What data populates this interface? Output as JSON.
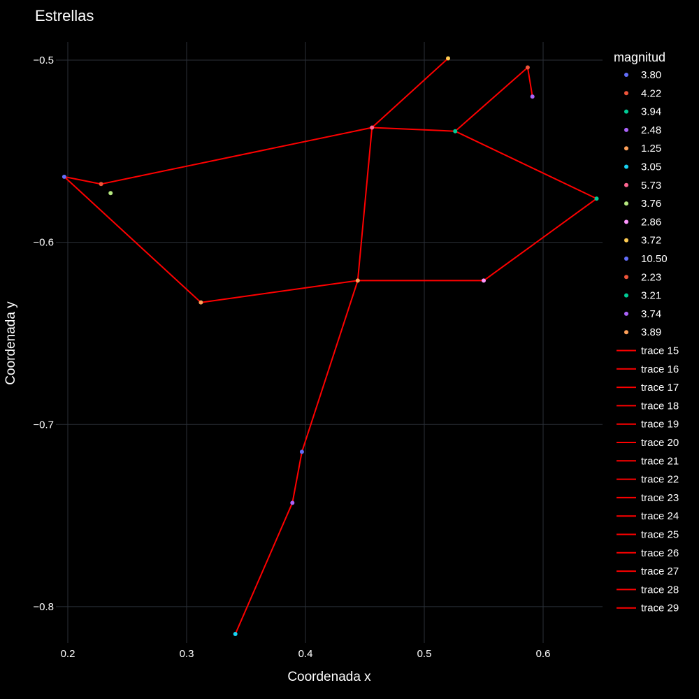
{
  "chart_data": {
    "type": "scatter",
    "title": "Estrellas",
    "xlabel": "Coordenada x",
    "ylabel": "Coordenada y",
    "xlim": [
      0.19,
      0.65
    ],
    "ylim": [
      -0.82,
      -0.49
    ],
    "x_ticks": [
      0.2,
      0.3,
      0.4,
      0.5,
      0.6
    ],
    "x_tick_labels": [
      "0.2",
      "0.3",
      "0.4",
      "0.5",
      "0.6"
    ],
    "y_ticks": [
      -0.5,
      -0.6,
      -0.7,
      -0.8
    ],
    "y_tick_labels": [
      "−0.5",
      "−0.6",
      "−0.7",
      "−0.8"
    ],
    "grid": true,
    "background": "#000000",
    "grid_color": "#2b3038",
    "line_color": "#ff0000",
    "legend_title": "magnitud",
    "legend_position": "right",
    "points": [
      {
        "name": "3.80",
        "x": 0.197,
        "y": -0.564,
        "color": "#636efa"
      },
      {
        "name": "4.22",
        "x": 0.228,
        "y": -0.568,
        "color": "#ef553b"
      },
      {
        "name": "3.94",
        "x": 0.645,
        "y": -0.576,
        "color": "#00cc96"
      },
      {
        "name": "2.48",
        "x": 0.591,
        "y": -0.52,
        "color": "#ab63fa"
      },
      {
        "name": "1.25",
        "x": 0.312,
        "y": -0.633,
        "color": "#ffa15a"
      },
      {
        "name": "3.05",
        "x": 0.341,
        "y": -0.815,
        "color": "#19d3f3"
      },
      {
        "name": "5.73",
        "x": 0.456,
        "y": -0.537,
        "color": "#ff6692"
      },
      {
        "name": "3.76",
        "x": 0.236,
        "y": -0.573,
        "color": "#b6e880"
      },
      {
        "name": "2.86",
        "x": 0.55,
        "y": -0.621,
        "color": "#ff97ff"
      },
      {
        "name": "3.72",
        "x": 0.52,
        "y": -0.499,
        "color": "#fecb52"
      },
      {
        "name": "10.50",
        "x": 0.397,
        "y": -0.715,
        "color": "#636efa"
      },
      {
        "name": "2.23",
        "x": 0.587,
        "y": -0.504,
        "color": "#ef553b"
      },
      {
        "name": "3.21",
        "x": 0.526,
        "y": -0.539,
        "color": "#00cc96"
      },
      {
        "name": "3.74",
        "x": 0.389,
        "y": -0.743,
        "color": "#ab63fa"
      },
      {
        "name": "3.89",
        "x": 0.444,
        "y": -0.621,
        "color": "#ffa15a"
      }
    ],
    "lines": [
      {
        "name": "trace 15",
        "x": [
          0.197,
          0.228
        ],
        "y": [
          -0.564,
          -0.568
        ]
      },
      {
        "name": "trace 16",
        "x": [
          0.228,
          0.456
        ],
        "y": [
          -0.568,
          -0.537
        ]
      },
      {
        "name": "trace 17",
        "x": [
          0.456,
          0.52
        ],
        "y": [
          -0.537,
          -0.499
        ]
      },
      {
        "name": "trace 18",
        "x": [
          0.456,
          0.526
        ],
        "y": [
          -0.537,
          -0.539
        ]
      },
      {
        "name": "trace 19",
        "x": [
          0.526,
          0.587
        ],
        "y": [
          -0.539,
          -0.504
        ]
      },
      {
        "name": "trace 20",
        "x": [
          0.587,
          0.591
        ],
        "y": [
          -0.504,
          -0.52
        ]
      },
      {
        "name": "trace 21",
        "x": [
          0.526,
          0.645
        ],
        "y": [
          -0.539,
          -0.576
        ]
      },
      {
        "name": "trace 22",
        "x": [
          0.645,
          0.55
        ],
        "y": [
          -0.576,
          -0.621
        ]
      },
      {
        "name": "trace 23",
        "x": [
          0.55,
          0.444
        ],
        "y": [
          -0.621,
          -0.621
        ]
      },
      {
        "name": "trace 24",
        "x": [
          0.444,
          0.456
        ],
        "y": [
          -0.621,
          -0.537
        ]
      },
      {
        "name": "trace 25",
        "x": [
          0.197,
          0.312
        ],
        "y": [
          -0.564,
          -0.633
        ]
      },
      {
        "name": "trace 26",
        "x": [
          0.312,
          0.444
        ],
        "y": [
          -0.633,
          -0.621
        ]
      },
      {
        "name": "trace 27",
        "x": [
          0.444,
          0.397
        ],
        "y": [
          -0.621,
          -0.715
        ]
      },
      {
        "name": "trace 28",
        "x": [
          0.397,
          0.389
        ],
        "y": [
          -0.715,
          -0.743
        ]
      },
      {
        "name": "trace 29",
        "x": [
          0.389,
          0.341
        ],
        "y": [
          -0.743,
          -0.815
        ]
      }
    ]
  }
}
